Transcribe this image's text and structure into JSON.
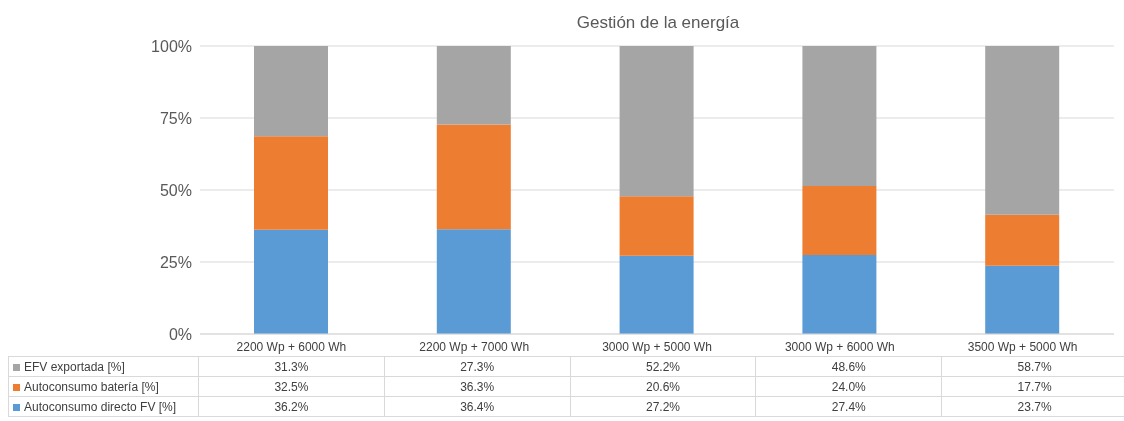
{
  "chart_data": {
    "type": "bar",
    "title": "Gestión de la energía",
    "stacked": true,
    "categories": [
      "2200 Wp + 6000 Wh",
      "2200 Wp + 7000 Wh",
      "3000 Wp + 5000 Wh",
      "3000 Wp + 6000 Wh",
      "3500 Wp + 5000 Wh"
    ],
    "series": [
      {
        "name": "Autoconsumo directo FV [%]",
        "color": "#5b9bd5",
        "values": [
          36.2,
          36.4,
          27.2,
          27.4,
          23.7
        ],
        "value_labels": [
          "36.2%",
          "36.4%",
          "27.2%",
          "27.4%",
          "23.7%"
        ]
      },
      {
        "name": "Autoconsumo batería [%]",
        "color": "#ed7d31",
        "values": [
          32.5,
          36.3,
          20.6,
          24.0,
          17.7
        ],
        "value_labels": [
          "32.5%",
          "36.3%",
          "20.6%",
          "24.0%",
          "17.7%"
        ]
      },
      {
        "name": "EFV exportada [%]",
        "color": "#a5a5a5",
        "values": [
          31.3,
          27.3,
          52.2,
          48.6,
          58.7
        ],
        "value_labels": [
          "31.3%",
          "27.3%",
          "52.2%",
          "48.6%",
          "58.7%"
        ]
      }
    ],
    "ylim": [
      0,
      100
    ],
    "yticks": [
      {
        "value": 0,
        "label": "0%"
      },
      {
        "value": 25,
        "label": "25%"
      },
      {
        "value": 50,
        "label": "50%"
      },
      {
        "value": 75,
        "label": "75%"
      },
      {
        "value": 100,
        "label": "100%"
      }
    ],
    "grid": "y",
    "legend": "bottom"
  }
}
